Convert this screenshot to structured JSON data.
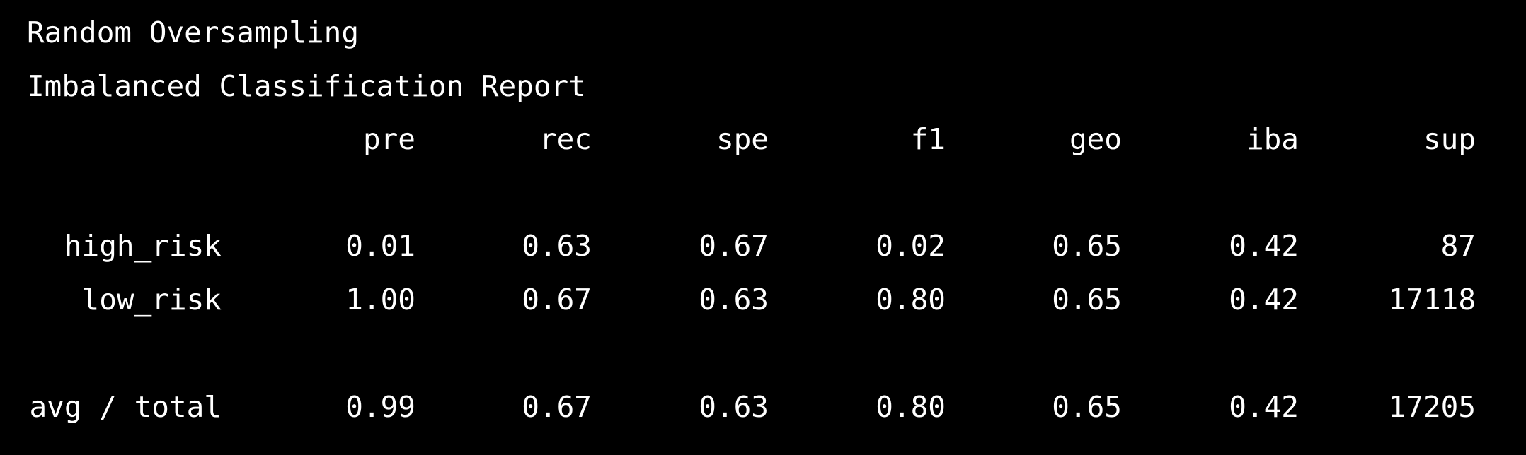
{
  "title": "Random Oversampling",
  "subtitle": "Imbalanced Classification Report",
  "columns": [
    "pre",
    "rec",
    "spe",
    "f1",
    "geo",
    "iba",
    "sup"
  ],
  "rows": [
    {
      "label": "high_risk",
      "values": [
        "0.01",
        "0.63",
        "0.67",
        "0.02",
        "0.65",
        "0.42",
        "87"
      ]
    },
    {
      "label": "low_risk",
      "values": [
        "1.00",
        "0.67",
        "0.63",
        "0.80",
        "0.65",
        "0.42",
        "17118"
      ]
    }
  ],
  "summary": {
    "label": "avg / total",
    "values": [
      "0.99",
      "0.67",
      "0.63",
      "0.80",
      "0.65",
      "0.42",
      "17205"
    ]
  },
  "colors": {
    "background": "#000000",
    "text": "#ffffff"
  }
}
